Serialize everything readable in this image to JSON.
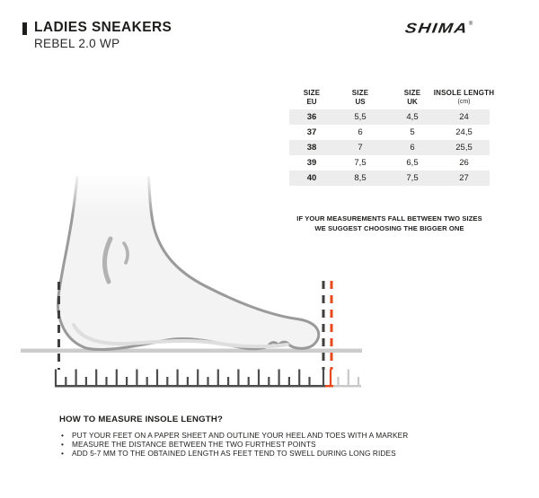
{
  "header": {
    "category": "LADIES SNEAKERS",
    "model": "REBEL 2.0 WP",
    "brand": "SHIMA",
    "brand_reg": "®"
  },
  "size_table": {
    "columns": [
      {
        "line1": "SIZE",
        "line2": "EU"
      },
      {
        "line1": "SIZE",
        "line2": "US"
      },
      {
        "line1": "SIZE",
        "line2": "UK"
      },
      {
        "line1": "INSOLE LENGTH",
        "line2": "(cm)"
      }
    ],
    "rows": [
      {
        "eu": "36",
        "us": "5,5",
        "uk": "4,5",
        "insole": "24"
      },
      {
        "eu": "37",
        "us": "6",
        "uk": "5",
        "insole": "24,5"
      },
      {
        "eu": "38",
        "us": "7",
        "uk": "6",
        "insole": "25,5"
      },
      {
        "eu": "39",
        "us": "7,5",
        "uk": "6,5",
        "insole": "26"
      },
      {
        "eu": "40",
        "us": "8,5",
        "uk": "7,5",
        "insole": "27"
      }
    ],
    "zebra_row_color": "#ededed"
  },
  "size_note": {
    "line1": "IF YOUR MEASUREMENTS FALL BETWEEN TWO SIZES",
    "line2": "WE SUGGEST CHOOSING THE BIGGER ONE"
  },
  "measure_guide": {
    "title": "HOW TO MEASURE INSOLE LENGTH?",
    "bullets": [
      "PUT YOUR FEET ON A PAPER SHEET AND OUTLINE YOUR HEEL AND TOES WITH A MARKER",
      "MEASURE THE DISTANCE BETWEEN THE TWO FURTHEST POINTS",
      "ADD 5-7 MM TO THE OBTAINED LENGTH AS FEET TEND TO SWELL DURING LONG RIDES"
    ]
  },
  "illustration": {
    "foot_icon": "foot-side-profile-icon",
    "heel_marker": "black-dashed-line",
    "toe_marker": "black-dashed-line",
    "swell_marker": "red-dashed-line",
    "marker_dark_color": "#3f3f3f",
    "marker_accent_color": "#e8491d",
    "ruler_dark_color": "#4d4d4d",
    "ruler_light_color": "#c9c9c9",
    "ground_color": "#cccccc"
  }
}
